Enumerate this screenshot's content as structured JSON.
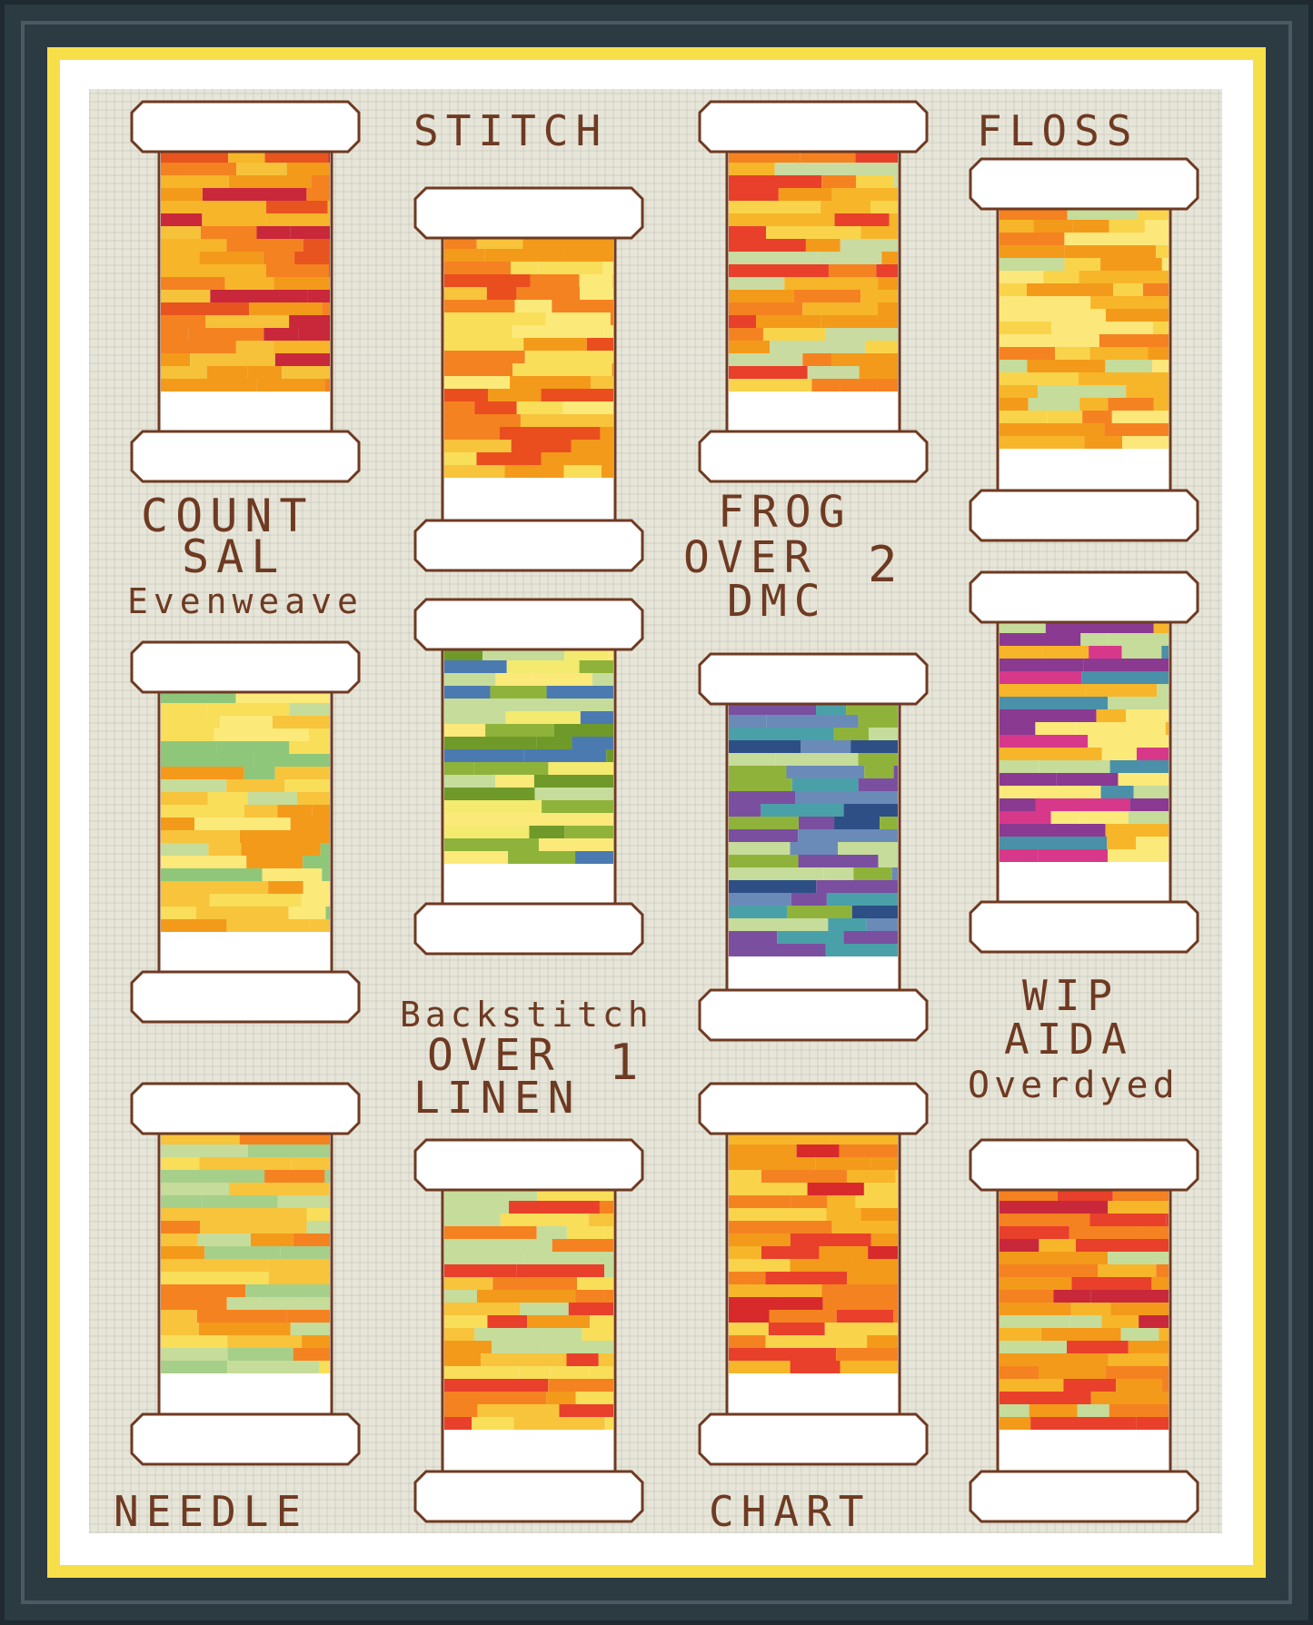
{
  "labels": {
    "stitch": "STITCH",
    "floss": "FLOSS",
    "count": "COUNT",
    "sal": "SAL",
    "evenweave": "Evenweave",
    "frog": "FROG",
    "over2": "OVER",
    "two": "2",
    "dmc": "DMC",
    "backstitch": "Backstitch",
    "over1": "OVER",
    "one": "1",
    "linen": "LINEN",
    "wip": "WIP",
    "aida": "AIDA",
    "overdyed": "Overdyed",
    "needle": "NEEDLE",
    "chart": "CHART"
  },
  "colors": {
    "outline": "#6e3a22",
    "spool_white": "#ffffff",
    "fabric": "#e6e5d8",
    "mat": "#f7df4a",
    "frame": "#2c3a42"
  },
  "spools": [
    {
      "name": "spool-1",
      "palette": [
        "#f39a1a",
        "#f7b52a",
        "#f58220",
        "#e8541f",
        "#f5c23a",
        "#c8283a"
      ]
    },
    {
      "name": "spool-2",
      "palette": [
        "#f39a1a",
        "#f7c43c",
        "#f58220",
        "#ea4e1e",
        "#f9de5a",
        "#fbe97a"
      ]
    },
    {
      "name": "spool-3",
      "palette": [
        "#f39a1a",
        "#f58220",
        "#e8402a",
        "#f7b52a",
        "#f9d44a",
        "#c9dba0"
      ]
    },
    {
      "name": "spool-4",
      "palette": [
        "#f7b52a",
        "#f39a1a",
        "#f9d44a",
        "#f58220",
        "#fbe77a",
        "#c6dc9a"
      ]
    },
    {
      "name": "spool-5",
      "palette": [
        "#f7c43c",
        "#f9de5a",
        "#c6dc9a",
        "#f39a1a",
        "#8fc77a",
        "#fbe97a"
      ]
    },
    {
      "name": "spool-6",
      "palette": [
        "#c6dc9a",
        "#fbe97a",
        "#8fb33a",
        "#f4ea70",
        "#6f9a2a",
        "#4a7ab0"
      ]
    },
    {
      "name": "spool-7",
      "palette": [
        "#6a8ab8",
        "#8fb33a",
        "#2d4f86",
        "#c6dc9a",
        "#4aa0a8",
        "#7a4fa0"
      ]
    },
    {
      "name": "spool-8",
      "palette": [
        "#8a3a90",
        "#d8388a",
        "#4a90a8",
        "#c6dc9a",
        "#fbe97a",
        "#f7b52a"
      ]
    },
    {
      "name": "spool-9",
      "palette": [
        "#c6dc9a",
        "#f7c43c",
        "#f9de5a",
        "#f58220",
        "#a6cf8a",
        "#f39a1a"
      ]
    },
    {
      "name": "spool-10",
      "palette": [
        "#f7c43c",
        "#f9de5a",
        "#f39a1a",
        "#c6dc9a",
        "#f58220",
        "#e8402a"
      ]
    },
    {
      "name": "spool-11",
      "palette": [
        "#f7b52a",
        "#f39a1a",
        "#f58220",
        "#e8402a",
        "#f9d44a",
        "#d82a2a"
      ]
    },
    {
      "name": "spool-12",
      "palette": [
        "#f39a1a",
        "#f58220",
        "#e8402a",
        "#f7b52a",
        "#c6dc9a",
        "#c8283a"
      ]
    }
  ]
}
